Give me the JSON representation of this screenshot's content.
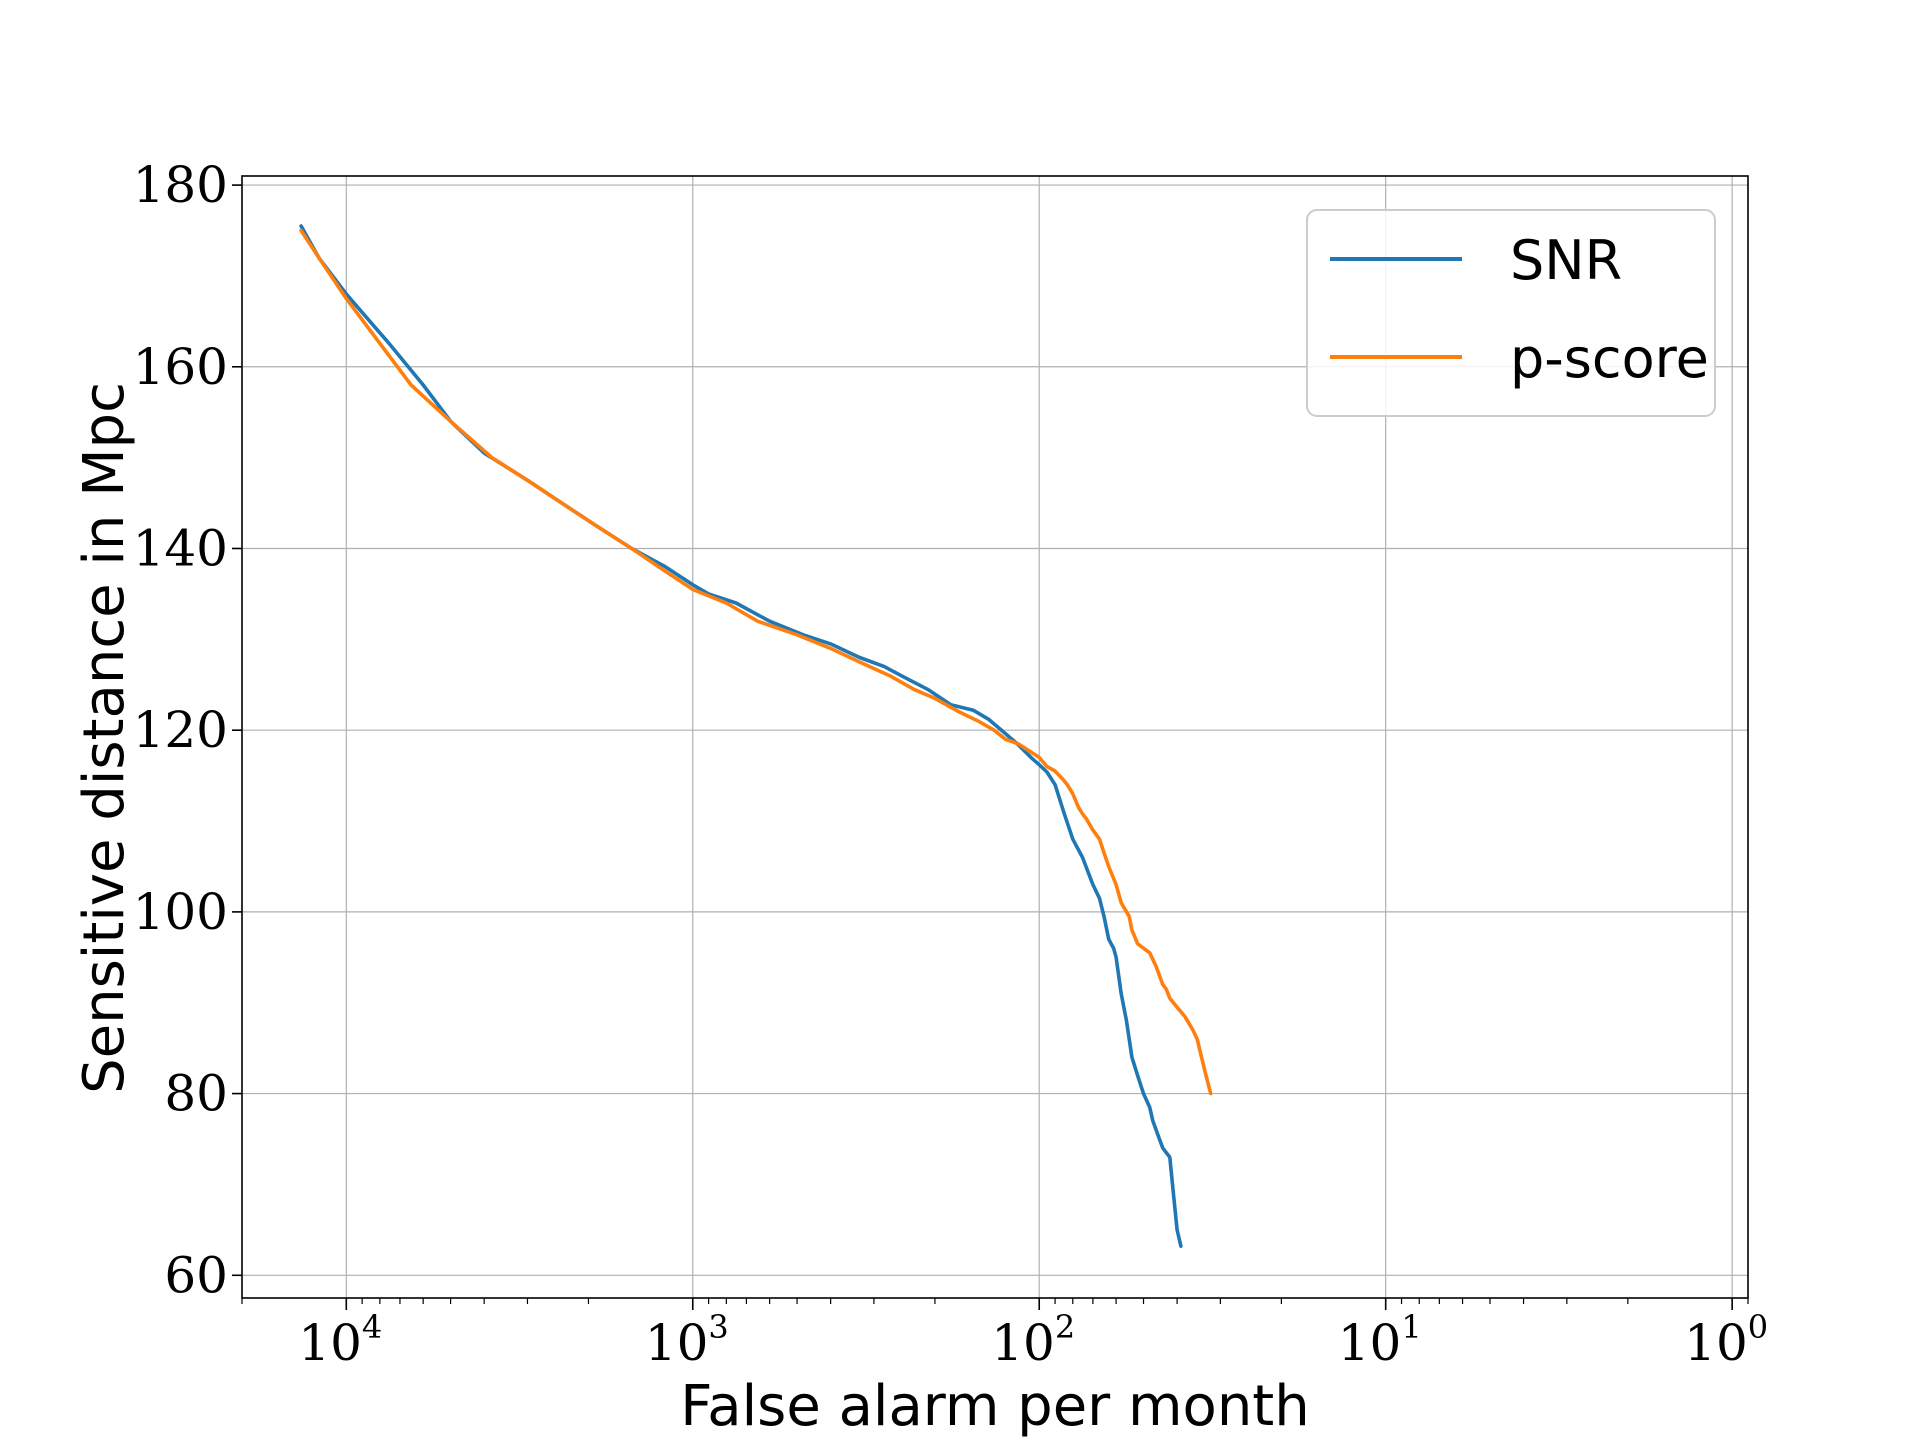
{
  "chart_data": {
    "type": "line",
    "title": "",
    "xlabel": "False alarm per month",
    "ylabel": "Sensitive distance in Mpc",
    "xscale": "log",
    "x_inverted": true,
    "xlim": [
      20000,
      0.9
    ],
    "ylim": [
      57.5,
      181
    ],
    "grid": true,
    "legend_position": "upper-right",
    "x_ticks": [
      {
        "value": 10000,
        "base": "10",
        "exp": "4"
      },
      {
        "value": 1000,
        "base": "10",
        "exp": "3"
      },
      {
        "value": 100,
        "base": "10",
        "exp": "2"
      },
      {
        "value": 10,
        "base": "10",
        "exp": "1"
      },
      {
        "value": 1,
        "base": "10",
        "exp": "0"
      }
    ],
    "y_ticks": [
      {
        "value": 60,
        "label": "60"
      },
      {
        "value": 80,
        "label": "80"
      },
      {
        "value": 100,
        "label": "100"
      },
      {
        "value": 120,
        "label": "120"
      },
      {
        "value": 140,
        "label": "140"
      },
      {
        "value": 160,
        "label": "160"
      },
      {
        "value": 180,
        "label": "180"
      }
    ],
    "series": [
      {
        "name": "SNR",
        "color": "#1f77b4",
        "x": [
          13500,
          12000,
          10000,
          7500,
          6000,
          5000,
          4000,
          3000,
          2500,
          1900,
          1500,
          1200,
          1000,
          900,
          750,
          600,
          480,
          400,
          330,
          280,
          250,
          210,
          180,
          155,
          140,
          125,
          115,
          105,
          100,
          95,
          90,
          85,
          80,
          75,
          70,
          67,
          65,
          63,
          62,
          61,
          60,
          58,
          56,
          55,
          54,
          52,
          50,
          48,
          47,
          46,
          45,
          44,
          43,
          42,
          41,
          40,
          39
        ],
        "values": [
          175.5,
          172,
          168,
          162.5,
          158,
          154,
          150.5,
          147.5,
          145.5,
          142.5,
          140,
          138,
          136,
          135,
          134,
          132,
          130.5,
          129.5,
          128,
          127,
          126,
          124.5,
          122.8,
          122.2,
          121.2,
          119.6,
          118.4,
          116.9,
          116.2,
          115.4,
          114,
          111,
          108,
          106,
          103,
          101.5,
          99.5,
          97,
          96.5,
          96,
          95,
          91,
          88,
          86,
          84,
          82,
          80,
          78.5,
          77,
          76,
          75,
          74,
          73.5,
          73,
          69,
          65,
          63.2
        ]
      },
      {
        "name": "p-score",
        "color": "#ff7f0e",
        "x": [
          13500,
          12000,
          10000,
          6500,
          5000,
          3800,
          3000,
          2500,
          1900,
          1500,
          1200,
          1000,
          800,
          650,
          500,
          400,
          330,
          270,
          230,
          200,
          170,
          150,
          135,
          125,
          115,
          100,
          95,
          90,
          85,
          83,
          80,
          77,
          75,
          73,
          70,
          67,
          65,
          63,
          60,
          58,
          55,
          54,
          52,
          50,
          48,
          46,
          45,
          44,
          43,
          42,
          41,
          40,
          38,
          36,
          35,
          34,
          33,
          32
        ],
        "values": [
          175,
          172,
          167.5,
          158,
          154,
          150,
          147.5,
          145.5,
          142.5,
          140,
          137.5,
          135.5,
          134,
          132,
          130.5,
          129,
          127.5,
          126,
          124.5,
          123.5,
          122,
          121,
          120,
          119,
          118.5,
          117,
          116,
          115.5,
          114.5,
          114,
          113,
          111.5,
          110.8,
          110.2,
          109,
          108,
          106.5,
          105,
          103,
          101,
          99.5,
          98,
          96.5,
          96,
          95.5,
          94,
          93,
          92,
          91.5,
          90.5,
          90,
          89.5,
          88.5,
          87,
          86,
          84,
          82,
          80
        ]
      }
    ]
  }
}
